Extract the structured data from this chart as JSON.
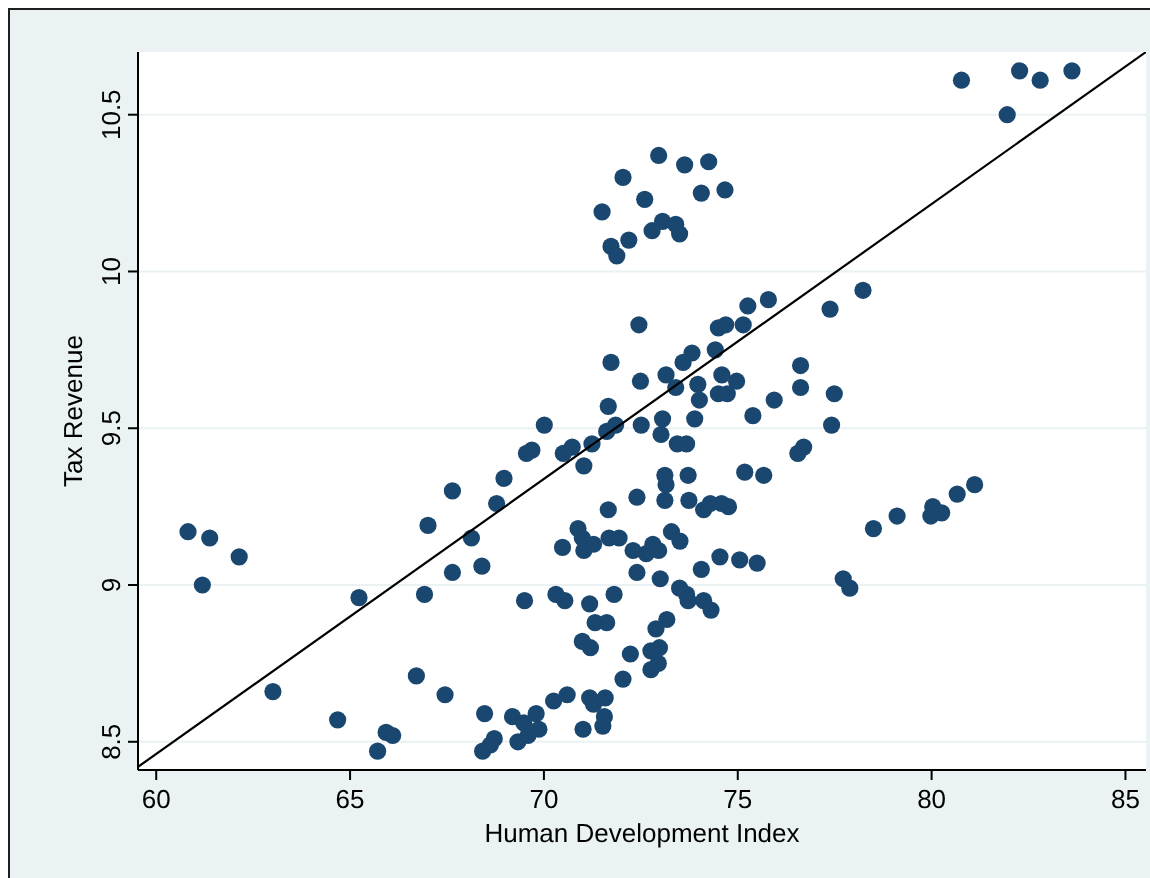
{
  "chart_data": {
    "type": "scatter",
    "xlabel": "Human Development Index",
    "ylabel": "Tax Revenue",
    "xlim": [
      59.53,
      85.53
    ],
    "ylim": [
      8.41,
      10.7
    ],
    "xticks": [
      60,
      65,
      70,
      75,
      80,
      85
    ],
    "yticks": [
      8.5,
      9,
      9.5,
      10,
      10.5
    ],
    "grid": "y",
    "marker": "circle",
    "series": [
      {
        "color": "#1a476f",
        "x": [
          80.77,
          82.27,
          82.8,
          83.62,
          81.95,
          72.96,
          73.63,
          74.25,
          72.04,
          72.6,
          74.06,
          74.67,
          71.5,
          73.06,
          72.79,
          73.4,
          73.5,
          72.19,
          71.73,
          71.88,
          72.45,
          75.26,
          75.79,
          77.38,
          78.23,
          74.5,
          74.69,
          75.14,
          74.42,
          73.82,
          73.59,
          73.15,
          74.59,
          74.97,
          71.73,
          72.49,
          73.97,
          73.4,
          74.01,
          74.5,
          74.73,
          76.62,
          76.62,
          77.49,
          75.94,
          75.39,
          77.42,
          73.89,
          73.06,
          70.01,
          72.51,
          71.66,
          71.85,
          71.62,
          73.02,
          73.44,
          73.68,
          71.24,
          70.73,
          70.5,
          69.69,
          69.55,
          71.03,
          76.7,
          76.55,
          75.18,
          75.67,
          73.12,
          73.72,
          73.15,
          72.4,
          73.12,
          73.74,
          74.12,
          74.29,
          74.58,
          74.76,
          71.66,
          68.97,
          67.64,
          68.78,
          67.01,
          68.13,
          60.82,
          61.38,
          62.14,
          61.19,
          70.88,
          70.99,
          70.48,
          71.03,
          71.28,
          71.68,
          71.94,
          72.3,
          72.64,
          72.81,
          72.96,
          73.29,
          73.51,
          72.4,
          73.0,
          74.06,
          74.54,
          75.05,
          75.5,
          67.64,
          68.4,
          66.92,
          65.23,
          69.5,
          70.31,
          70.54,
          71.18,
          71.81,
          73.5,
          73.68,
          73.72,
          74.12,
          74.31,
          77.72,
          77.89,
          78.5,
          79.11,
          79.98,
          80.03,
          80.26,
          80.66,
          81.11,
          70.99,
          71.2,
          71.32,
          71.62,
          72.89,
          72.98,
          73.17,
          72.76,
          72.76,
          72.95,
          72.23,
          72.04,
          66.71,
          67.45,
          63.01,
          64.68,
          65.71,
          65.93,
          66.1,
          68.47,
          68.72,
          68.62,
          68.42,
          69.19,
          69.33,
          69.48,
          69.59,
          69.8,
          69.87,
          70.25,
          70.6,
          71.01,
          71.18,
          71.56,
          71.58,
          71.28,
          71.52
        ],
        "values": [
          10.61,
          10.64,
          10.61,
          10.64,
          10.5,
          10.37,
          10.34,
          10.35,
          10.3,
          10.23,
          10.25,
          10.26,
          10.19,
          10.16,
          10.13,
          10.15,
          10.12,
          10.1,
          10.08,
          10.05,
          9.83,
          9.89,
          9.91,
          9.88,
          9.94,
          9.82,
          9.83,
          9.83,
          9.75,
          9.74,
          9.71,
          9.67,
          9.67,
          9.65,
          9.71,
          9.65,
          9.64,
          9.63,
          9.59,
          9.61,
          9.61,
          9.7,
          9.63,
          9.61,
          9.59,
          9.54,
          9.51,
          9.53,
          9.53,
          9.51,
          9.51,
          9.57,
          9.51,
          9.49,
          9.48,
          9.45,
          9.45,
          9.45,
          9.44,
          9.42,
          9.43,
          9.42,
          9.38,
          9.44,
          9.42,
          9.36,
          9.35,
          9.35,
          9.35,
          9.32,
          9.28,
          9.27,
          9.27,
          9.24,
          9.26,
          9.26,
          9.25,
          9.24,
          9.34,
          9.3,
          9.26,
          9.19,
          9.15,
          9.17,
          9.15,
          9.09,
          9.0,
          9.18,
          9.15,
          9.12,
          9.11,
          9.13,
          9.15,
          9.15,
          9.11,
          9.1,
          9.13,
          9.11,
          9.17,
          9.14,
          9.04,
          9.02,
          9.05,
          9.09,
          9.08,
          9.07,
          9.04,
          9.06,
          8.97,
          8.96,
          8.95,
          8.97,
          8.95,
          8.94,
          8.97,
          8.99,
          8.97,
          8.95,
          8.95,
          8.92,
          9.02,
          8.99,
          9.18,
          9.22,
          9.22,
          9.25,
          9.23,
          9.29,
          9.32,
          8.82,
          8.8,
          8.88,
          8.88,
          8.86,
          8.8,
          8.89,
          8.79,
          8.73,
          8.75,
          8.78,
          8.7,
          8.71,
          8.65,
          8.66,
          8.57,
          8.47,
          8.53,
          8.52,
          8.59,
          8.51,
          8.49,
          8.47,
          8.58,
          8.5,
          8.56,
          8.52,
          8.59,
          8.54,
          8.63,
          8.65,
          8.54,
          8.64,
          8.58,
          8.64,
          8.62,
          8.55
        ]
      },
      {
        "type": "line",
        "color": "#000000",
        "marker": "none",
        "x": [
          59.53,
          85.53
        ],
        "values": [
          8.42,
          10.7
        ]
      }
    ]
  }
}
